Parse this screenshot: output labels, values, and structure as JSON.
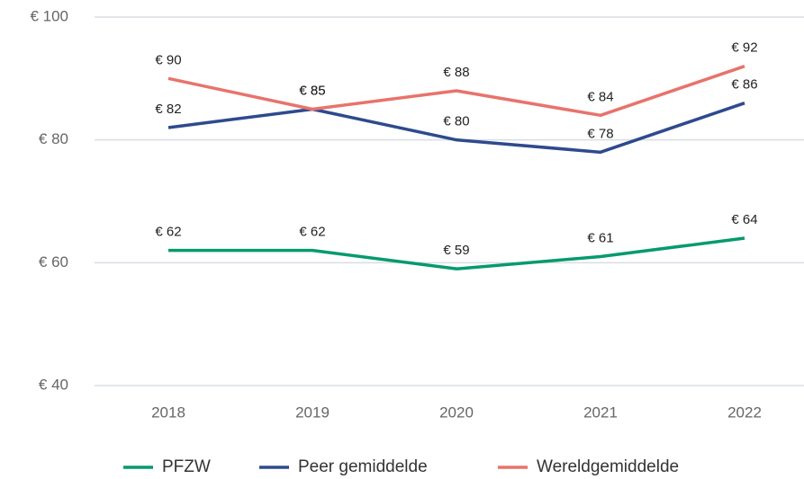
{
  "chart_data": {
    "type": "line",
    "categories": [
      "2018",
      "2019",
      "2020",
      "2021",
      "2022"
    ],
    "series": [
      {
        "name": "PFZW",
        "color": "#069a6e",
        "values": [
          62,
          62,
          59,
          61,
          64
        ],
        "value_labels": [
          "€ 62",
          "€ 62",
          "€ 59",
          "€ 61",
          "€ 64"
        ]
      },
      {
        "name": "Peer gemiddelde",
        "color": "#2e4a8e",
        "values": [
          82,
          85,
          80,
          78,
          86
        ],
        "value_labels": [
          "€ 82",
          "€ 85",
          "€ 80",
          "€ 78",
          "€ 86"
        ]
      },
      {
        "name": "Wereldgemiddelde",
        "color": "#e8736c",
        "values": [
          90,
          85,
          88,
          84,
          92
        ],
        "value_labels": [
          "€ 90",
          "€ 85",
          "€ 88",
          "€ 84",
          "€ 92"
        ]
      }
    ],
    "ylim": [
      40,
      100
    ],
    "yticks": [
      {
        "value": 40,
        "label": "€ 40"
      },
      {
        "value": 60,
        "label": "€ 60"
      },
      {
        "value": 80,
        "label": "€ 80"
      },
      {
        "value": 100,
        "label": "€ 100"
      }
    ],
    "grid": true,
    "legend": "bottom"
  }
}
